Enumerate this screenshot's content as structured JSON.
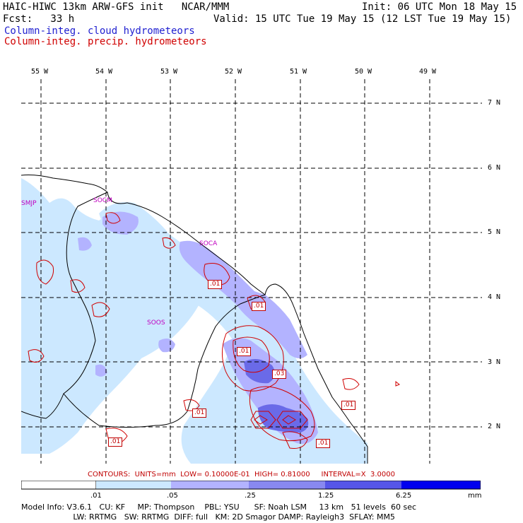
{
  "header": {
    "title_left": "HAIC-HIWC 13km ARW-GFS init   NCAR/MMM",
    "init": "Init: 06 UTC Mon 18 May 15",
    "fcst": "Fcst:   33 h",
    "valid": "Valid: 15 UTC Tue 19 May 15 (12 LST Tue 19 May 15)",
    "field_cloud": "Column-integ. cloud hydrometeors",
    "field_precip": "Column-integ. precip. hydrometeors"
  },
  "longitudes": [
    "55 W",
    "54 W",
    "53 W",
    "52 W",
    "51 W",
    "50 W",
    "49 W"
  ],
  "latitudes": [
    "7 N",
    "6 N",
    "5 N",
    "4 N",
    "3 N",
    "2 N"
  ],
  "stations": [
    "SMJP",
    "SOCM",
    "SOCA",
    "SOOS"
  ],
  "contour_labels": [
    ".01",
    ".01",
    ".01",
    ".03",
    ".01",
    ".01",
    ".01",
    ".01"
  ],
  "contour_info": "CONTOURS:  UNITS=mm  LOW= 0.10000E-01  HIGH= 0.81000     INTERVAL=X  3.0000",
  "colorbar": {
    "labels": [
      ".01",
      ".05",
      ".25",
      "1.25",
      "6.25",
      "mm"
    ],
    "colors": [
      "#ffffff",
      "#cce8ff",
      "#b3b3ff",
      "#8888f0",
      "#5555e8",
      "#2a2ae0",
      "#0000ee"
    ]
  },
  "model_info": {
    "line1": "Model Info: V3.6.1   CU: KF     MP: Thompson    PBL: YSU      SF: Noah LSM     13 km   51 levels  60 sec",
    "line2": "                     LW: RRTMG   SW: RRTMG  DIFF: full   KM: 2D Smagor DAMP: Rayleigh3  SFLAY: MM5"
  },
  "colors": {
    "cloud": "#1f1fd0",
    "precip": "#d00000",
    "station": "#c000c0",
    "land": "#000000"
  }
}
